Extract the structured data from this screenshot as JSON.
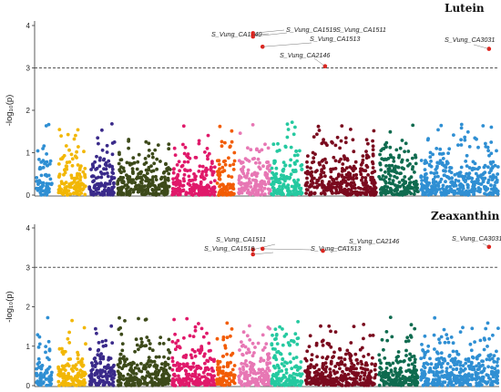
{
  "chart_data": [
    {
      "type": "scatter",
      "title": "Lutein",
      "ylabel": "-log₁₀(p)",
      "ylim": [
        0,
        4
      ],
      "yticks": [
        0,
        1,
        2,
        3,
        4
      ],
      "threshold": 3,
      "grid": false,
      "hits": [
        {
          "label": "S_Vung_CA1840",
          "chrom": 6,
          "pos": 0.45,
          "value": 3.78
        },
        {
          "label": "S_Vung_CA1519",
          "chrom": 6,
          "pos": 0.45,
          "value": 3.82
        },
        {
          "label": "S_Vung_CA1511",
          "chrom": 6,
          "pos": 0.45,
          "value": 3.74
        },
        {
          "label": "S_Vung_CA1513",
          "chrom": 6,
          "pos": 0.75,
          "value": 3.5
        },
        {
          "label": "S_Vung_CA2146",
          "chrom": 8,
          "pos": 0.28,
          "value": 3.04
        },
        {
          "label": "S_Vung_CA3031",
          "chrom": 10,
          "pos": 0.88,
          "value": 3.45
        }
      ]
    },
    {
      "type": "scatter",
      "title": "Zeaxanthin",
      "ylabel": "-log₁₀(p)",
      "ylim": [
        0,
        4
      ],
      "yticks": [
        0,
        1,
        2,
        3,
        4
      ],
      "threshold": 3,
      "grid": false,
      "hits": [
        {
          "label": "S_Vung_CA1511",
          "chrom": 6,
          "pos": 0.45,
          "value": 3.45
        },
        {
          "label": "S_Vung_CA1519",
          "chrom": 6,
          "pos": 0.45,
          "value": 3.33
        },
        {
          "label": "S_Vung_CA1513",
          "chrom": 6,
          "pos": 0.75,
          "value": 3.47
        },
        {
          "label": "S_Vung_CA2146",
          "chrom": 8,
          "pos": 0.25,
          "value": 3.42
        },
        {
          "label": "S_Vung_CA3031",
          "chrom": 10,
          "pos": 0.88,
          "value": 3.52
        }
      ]
    }
  ],
  "chromosome_colors": [
    "#2f8fd3",
    "#f2b705",
    "#3a2a8a",
    "#3d4a1a",
    "#e0196a",
    "#f25c05",
    "#e777b4",
    "#25c9a0",
    "#7a0a1e",
    "#0f6b4f",
    "#2f8fd3"
  ],
  "hit_color": "#e0201a",
  "threshold_color": "#555555"
}
